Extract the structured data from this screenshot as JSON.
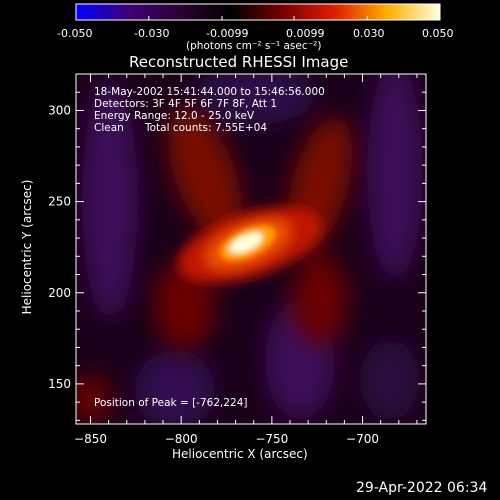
{
  "chart_data": {
    "type": "heatmap",
    "title": "Reconstructed RHESSI Image",
    "colorbar": {
      "ticks": [
        "-0.050",
        "-0.030",
        "-0.0099",
        "0.0099",
        "0.030",
        "0.050"
      ],
      "tick_values": [
        -0.05,
        -0.03,
        -0.0099,
        0.0099,
        0.03,
        0.05
      ],
      "range": [
        -0.05,
        0.05
      ],
      "label": "(photons cm⁻² s⁻¹ asec⁻²)",
      "colors": [
        "#0000ff",
        "#400078",
        "#2a0030",
        "#000000",
        "#7a0000",
        "#e02000",
        "#ffb000",
        "#ffffe0"
      ]
    },
    "annotations": {
      "time_range": "18-May-2002 15:41:44.000 to 15:46:56.000",
      "detectors": "Detectors: 3F 4F 5F 6F 7F 8F, Att 1",
      "energy": "Energy Range: 12.0 - 25.0 keV",
      "method": "Clean",
      "counts": "Total counts: 7.55E+04",
      "peak": "Position of Peak = [-762,224]"
    },
    "xlabel": "Heliocentric X (arcsec)",
    "ylabel": "Heliocentric Y (arcsec)",
    "xlim": [
      -858,
      -665
    ],
    "ylim": [
      128,
      320
    ],
    "xticks": [
      -850,
      -800,
      -750,
      -700
    ],
    "yticks": [
      150,
      200,
      250,
      300
    ],
    "peak": {
      "x": -762,
      "y": 224
    },
    "source_features": [
      {
        "x": -765,
        "y": 224,
        "value": 0.05
      },
      {
        "x": -780,
        "y": 255,
        "value": 0.012
      },
      {
        "x": -720,
        "y": 250,
        "value": 0.012
      },
      {
        "x": -800,
        "y": 185,
        "value": 0.01
      },
      {
        "x": -735,
        "y": 190,
        "value": 0.01
      }
    ]
  },
  "footer": {
    "timestamp": "29-Apr-2022 06:34"
  }
}
